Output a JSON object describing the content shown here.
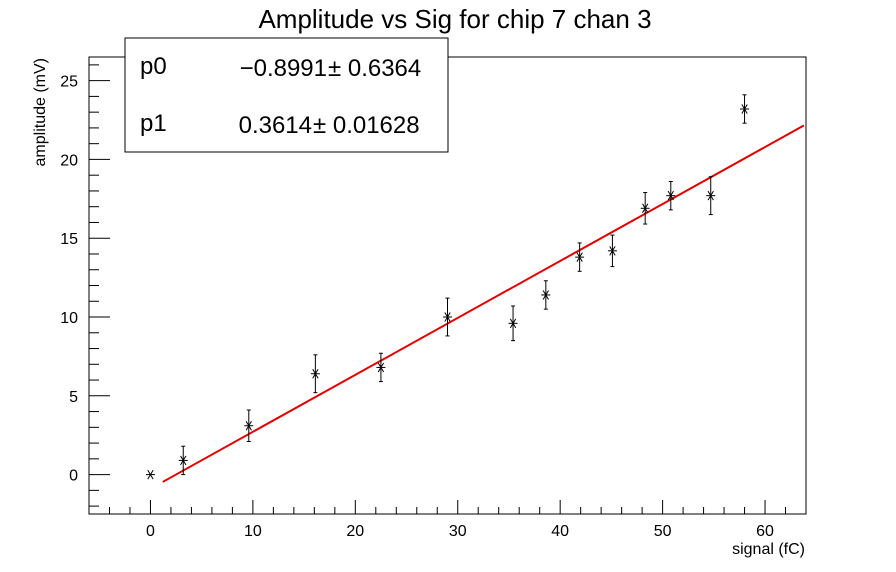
{
  "chart_data": {
    "type": "scatter",
    "title": "Amplitude vs Sig for chip 7 chan 3",
    "xlabel": "signal (fC)",
    "ylabel": "amplitude (mV)",
    "xlim": [
      -6,
      64
    ],
    "ylim": [
      -2.5,
      26.5
    ],
    "x_ticks": [
      0,
      10,
      20,
      30,
      40,
      50,
      60
    ],
    "y_ticks": [
      0,
      5,
      10,
      15,
      20,
      25
    ],
    "grid": false,
    "legend": "none",
    "series": [
      {
        "marker": "asterisk",
        "color": "#000000",
        "points": [
          {
            "x": 0.0,
            "y": 0.0,
            "err": 0.0
          },
          {
            "x": 3.2,
            "y": 0.9,
            "err": 0.9
          },
          {
            "x": 9.6,
            "y": 3.1,
            "err": 1.0
          },
          {
            "x": 16.1,
            "y": 6.4,
            "err": 1.2
          },
          {
            "x": 22.5,
            "y": 6.8,
            "err": 0.9
          },
          {
            "x": 29.0,
            "y": 10.0,
            "err": 1.2
          },
          {
            "x": 35.4,
            "y": 9.6,
            "err": 1.1
          },
          {
            "x": 38.6,
            "y": 11.4,
            "err": 0.9
          },
          {
            "x": 41.9,
            "y": 13.8,
            "err": 0.9
          },
          {
            "x": 45.1,
            "y": 14.2,
            "err": 1.0
          },
          {
            "x": 48.3,
            "y": 16.9,
            "err": 1.0
          },
          {
            "x": 50.8,
            "y": 17.7,
            "err": 0.9
          },
          {
            "x": 54.7,
            "y": 17.7,
            "err": 1.2
          },
          {
            "x": 58.0,
            "y": 23.2,
            "err": 0.9
          }
        ]
      }
    ],
    "fit": {
      "color": "#e00000",
      "p0": -0.8991,
      "p1": 0.3614,
      "x_range": [
        1.2,
        63.8
      ]
    },
    "stats_box": {
      "p0_label": "p0",
      "p0_value": "−0.8991",
      "p0_error": "± 0.6364",
      "p1_label": "p1",
      "p1_value": "0.3614",
      "p1_error": "± 0.01628"
    }
  }
}
